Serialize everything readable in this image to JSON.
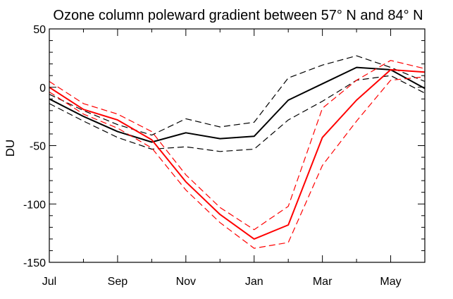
{
  "chart_data": {
    "type": "line",
    "title": "Ozone column poleward gradient between 57° N and 84° N",
    "xlabel": "",
    "ylabel": "DU",
    "x_tick_labels": [
      "Jul",
      "Sep",
      "Nov",
      "Jan",
      "Mar",
      "May"
    ],
    "x_tick_months": [
      0,
      2,
      4,
      6,
      8,
      10
    ],
    "x_minor_months": [
      1,
      3,
      5,
      7,
      9,
      11
    ],
    "xlim": [
      0,
      11
    ],
    "ylim": [
      -150,
      50
    ],
    "y_tick_values": [
      -150,
      -100,
      -50,
      0,
      50
    ],
    "y_tick_labels": [
      "-150",
      "-100",
      "-50",
      "0",
      "50"
    ],
    "y_minor_step": 10,
    "grid": false,
    "legend": "none",
    "x": [
      0,
      1,
      2,
      3,
      4,
      5,
      6,
      7,
      8,
      9,
      10,
      11
    ],
    "series": [
      {
        "color": "#000000",
        "style": "solid",
        "width": 2,
        "values": [
          -10,
          -25,
          -38,
          -47,
          -39,
          -44,
          -42,
          -11,
          3,
          17,
          15,
          -1
        ]
      },
      {
        "color": "#000000",
        "style": "dashed",
        "width": 1.2,
        "values": [
          -6,
          -20,
          -32,
          -41,
          -27,
          -34,
          -30,
          8,
          19,
          27,
          17,
          5
        ]
      },
      {
        "color": "#000000",
        "style": "dashed",
        "width": 1.2,
        "values": [
          -14,
          -29,
          -43,
          -53,
          -51,
          -55,
          -53,
          -28,
          -12,
          6,
          10,
          -5
        ]
      },
      {
        "color": "#ff0000",
        "style": "solid",
        "width": 2,
        "values": [
          0,
          -19,
          -28,
          -45,
          -81,
          -109,
          -130,
          -118,
          -43,
          -11,
          15,
          13
        ]
      },
      {
        "color": "#ff0000",
        "style": "dashed",
        "width": 1.2,
        "values": [
          5,
          -14,
          -23,
          -38,
          -75,
          -103,
          -122,
          -102,
          -18,
          6,
          23,
          16
        ]
      },
      {
        "color": "#ff0000",
        "style": "dashed",
        "width": 1.2,
        "values": [
          -4,
          -23,
          -35,
          -52,
          -88,
          -116,
          -138,
          -133,
          -67,
          -29,
          6,
          9
        ]
      }
    ]
  }
}
